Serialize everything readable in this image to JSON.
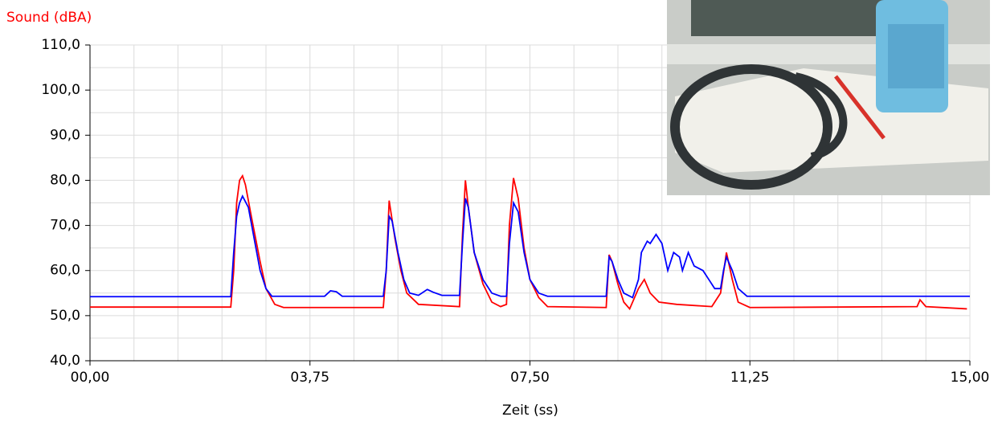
{
  "chart_data": {
    "type": "line",
    "ylabel": "Sound (dBA)",
    "xlabel": "Zeit (ss)",
    "xlim": [
      0,
      15
    ],
    "ylim": [
      40,
      110
    ],
    "xticks": [
      {
        "value": 0,
        "label": "00,00"
      },
      {
        "value": 3.75,
        "label": "03,75"
      },
      {
        "value": 7.5,
        "label": "07,50"
      },
      {
        "value": 11.25,
        "label": "11,25"
      },
      {
        "value": 15,
        "label": "15,00"
      }
    ],
    "yticks": [
      {
        "value": 40,
        "label": "40,0"
      },
      {
        "value": 50,
        "label": "50,0"
      },
      {
        "value": 60,
        "label": "60,0"
      },
      {
        "value": 70,
        "label": "70,0"
      },
      {
        "value": 80,
        "label": "80,0"
      },
      {
        "value": 90,
        "label": "90,0"
      },
      {
        "value": 100,
        "label": "100,0"
      },
      {
        "value": 110,
        "label": "110,0"
      }
    ],
    "grid": true,
    "series": [
      {
        "color": "#ff0000",
        "x": [
          0,
          2.4,
          2.45,
          2.5,
          2.55,
          2.6,
          2.65,
          2.75,
          2.9,
          3.0,
          3.15,
          3.3,
          5.0,
          5.05,
          5.1,
          5.2,
          5.3,
          5.4,
          5.6,
          6.3,
          6.35,
          6.4,
          6.45,
          6.55,
          6.7,
          6.85,
          7.0,
          7.1,
          7.15,
          7.22,
          7.3,
          7.4,
          7.5,
          7.65,
          7.8,
          8.8,
          8.85,
          8.9,
          9.0,
          9.1,
          9.2,
          9.35,
          9.45,
          9.55,
          9.7,
          10.0,
          10.6,
          10.75,
          10.85,
          10.95,
          11.05,
          11.25,
          14.1,
          14.15,
          14.25,
          14.95
        ],
        "values": [
          51.9,
          51.9,
          60,
          75,
          80,
          81,
          79,
          72,
          62,
          56,
          52.5,
          51.8,
          51.8,
          60,
          75.5,
          67,
          60,
          55,
          52.5,
          52,
          68,
          80,
          74,
          64,
          57,
          53,
          52,
          52.5,
          70,
          80.5,
          76,
          65,
          58,
          54,
          52,
          51.8,
          63.5,
          62,
          57,
          53,
          51.5,
          56,
          58,
          55,
          53,
          52.5,
          52,
          55,
          64,
          58,
          53,
          51.8,
          52,
          53.5,
          52,
          51.5
        ]
      },
      {
        "color": "#0000ff",
        "x": [
          0,
          2.4,
          2.45,
          2.5,
          2.55,
          2.6,
          2.7,
          2.8,
          2.9,
          3.0,
          3.1,
          4.0,
          4.1,
          4.2,
          4.3,
          5.0,
          5.05,
          5.1,
          5.15,
          5.25,
          5.35,
          5.45,
          5.6,
          5.75,
          5.85,
          6.0,
          6.3,
          6.35,
          6.4,
          6.45,
          6.55,
          6.7,
          6.85,
          7.0,
          7.1,
          7.15,
          7.22,
          7.3,
          7.4,
          7.5,
          7.65,
          7.8,
          8.8,
          8.85,
          8.9,
          9.0,
          9.1,
          9.25,
          9.35,
          9.4,
          9.5,
          9.55,
          9.65,
          9.75,
          9.85,
          9.95,
          10.05,
          10.1,
          10.2,
          10.3,
          10.45,
          10.55,
          10.65,
          10.75,
          10.8,
          10.85,
          10.95,
          11.05,
          11.2,
          15.0
        ],
        "values": [
          54.2,
          54.2,
          64,
          72,
          75,
          76.5,
          74,
          67,
          60,
          56,
          54.3,
          54.3,
          55.5,
          55.3,
          54.3,
          54.3,
          60,
          72,
          71,
          64,
          58,
          55,
          54.5,
          55.8,
          55.2,
          54.5,
          54.5,
          66,
          76,
          74,
          64,
          58,
          55,
          54.3,
          54.3,
          66,
          75,
          73,
          64,
          58,
          55,
          54.3,
          54.3,
          63,
          62,
          58,
          55,
          54,
          58,
          64,
          66.5,
          66,
          68,
          66,
          60,
          64,
          63,
          60,
          64,
          61,
          60,
          58,
          56,
          56,
          60,
          63,
          60,
          56,
          54.3,
          54.3
        ]
      }
    ]
  }
}
